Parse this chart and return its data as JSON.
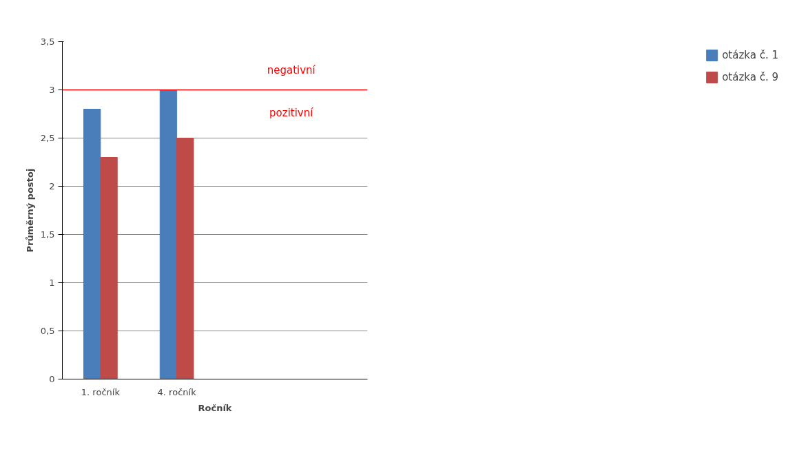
{
  "chart_data": {
    "type": "bar",
    "xlabel": "Ročník",
    "ylabel": "Průměrný postoj",
    "categories": [
      "1. ročník",
      "4. ročník",
      null,
      null
    ],
    "series": [
      {
        "name": "otázka č. 1",
        "color": "#4a7ebb",
        "values": [
          2.8,
          3.0,
          null,
          null
        ]
      },
      {
        "name": "otázka č. 9",
        "color": "#be4b48",
        "values": [
          2.3,
          2.5,
          null,
          null
        ]
      }
    ],
    "ylim": [
      0,
      3.5
    ],
    "yticks": [
      0,
      {
        "value": 0.5,
        "label": "0,5"
      },
      1,
      {
        "value": 1.5,
        "label": "1,5"
      },
      2,
      {
        "value": 2.5,
        "label": "2,5"
      },
      3,
      {
        "value": 3.5,
        "label": "3,5"
      }
    ],
    "grid": "y",
    "legend": "right",
    "ref_lines": [
      {
        "axis": "y",
        "value": 3,
        "label": "negativní",
        "color": "#ff0000"
      }
    ],
    "annotations": [
      "pozitivní"
    ]
  }
}
